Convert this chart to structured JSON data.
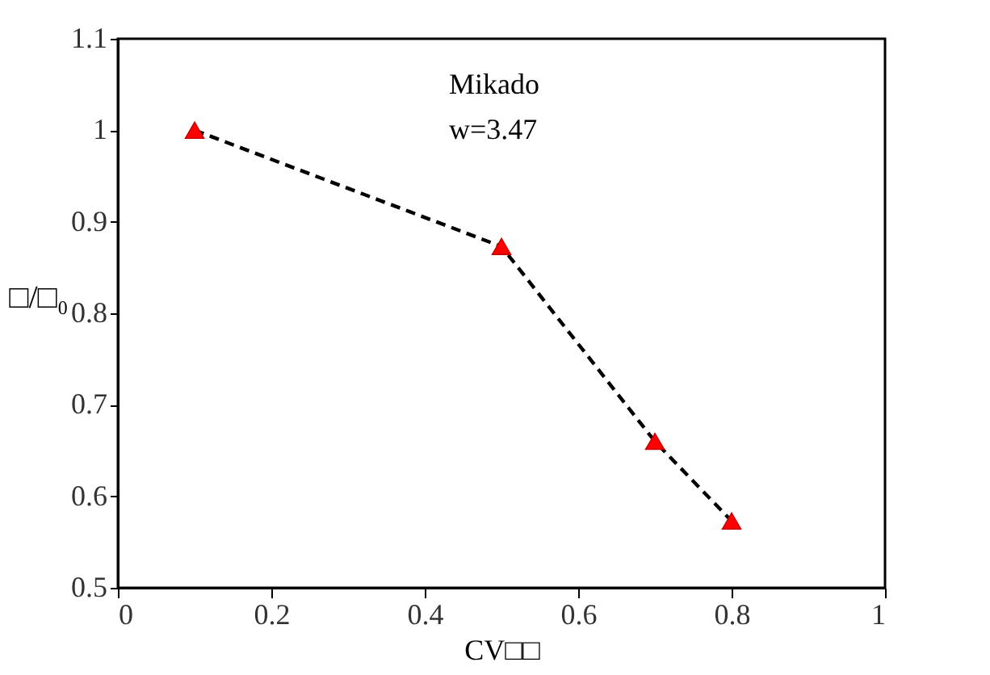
{
  "chart_data": {
    "type": "line",
    "xlabel": "CV□□",
    "ylabel": "□/□₀",
    "x": [
      0.1,
      0.5,
      0.7,
      0.8
    ],
    "series": [
      {
        "color": "#000000",
        "line_style": "dashed",
        "marker": "none",
        "values": [
          1.0,
          0.873,
          0.66,
          0.573
        ]
      },
      {
        "type": "scatter",
        "color": "#ff0000",
        "marker": "triangle",
        "values": [
          1.0,
          0.873,
          0.66,
          0.573
        ]
      }
    ],
    "xlim": [
      0,
      1
    ],
    "xticks": [
      0,
      0.2,
      0.4,
      0.6,
      0.8,
      1
    ],
    "ylim": [
      0.5,
      1.1
    ],
    "yticks": [
      0.5,
      0.6,
      0.7,
      0.8,
      0.9,
      1,
      1.1
    ],
    "annotations": [
      "Mikado",
      "w=3.47"
    ],
    "grid": false
  }
}
